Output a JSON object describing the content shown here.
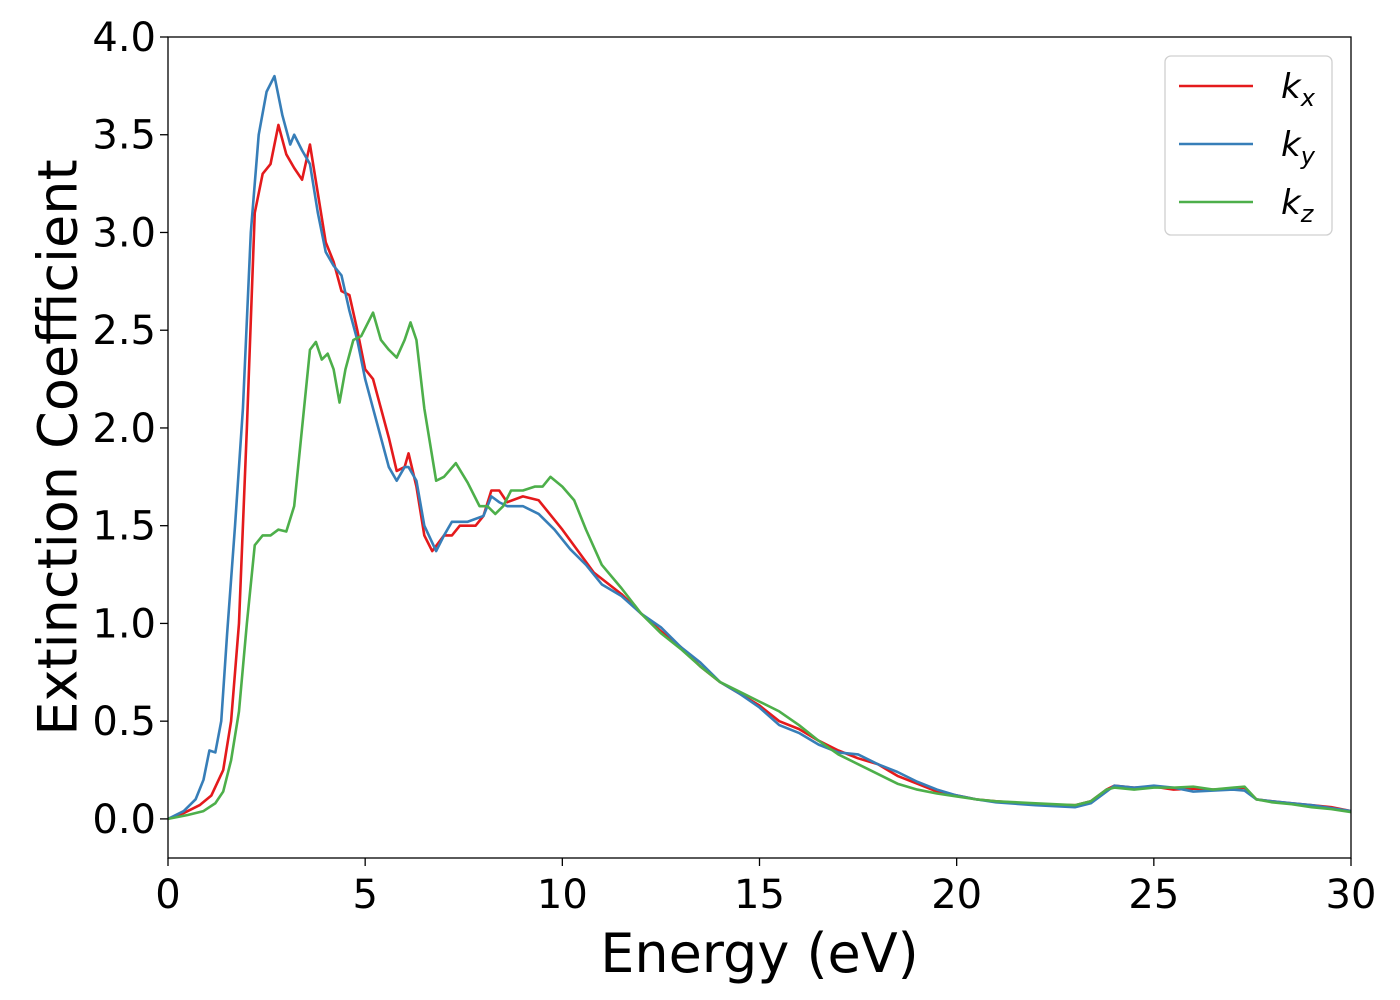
{
  "chart_data": {
    "type": "line",
    "title": "",
    "xlabel": "Energy (eV)",
    "ylabel": "Extinction Coefficient",
    "xlim": [
      0,
      30
    ],
    "ylim": [
      -0.2,
      4.0
    ],
    "xticks": [
      0,
      5,
      10,
      15,
      20,
      25,
      30
    ],
    "yticks": [
      0.0,
      0.5,
      1.0,
      1.5,
      2.0,
      2.5,
      3.0,
      3.5,
      4.0
    ],
    "xtick_labels": [
      "0",
      "5",
      "10",
      "15",
      "20",
      "25",
      "30"
    ],
    "ytick_labels": [
      "0.0",
      "0.5",
      "1.0",
      "1.5",
      "2.0",
      "2.5",
      "3.0",
      "3.5",
      "4.0"
    ],
    "grid": false,
    "legend_position": "top-right",
    "series": [
      {
        "name": "k_x",
        "legend_main": "k",
        "legend_sub": "x",
        "color": "#e41a1c",
        "points": [
          [
            0,
            0
          ],
          [
            0.4,
            0.03
          ],
          [
            0.8,
            0.07
          ],
          [
            1.1,
            0.12
          ],
          [
            1.4,
            0.25
          ],
          [
            1.6,
            0.5
          ],
          [
            1.8,
            1.0
          ],
          [
            2.0,
            2.0
          ],
          [
            2.2,
            3.1
          ],
          [
            2.4,
            3.3
          ],
          [
            2.6,
            3.35
          ],
          [
            2.8,
            3.55
          ],
          [
            3.0,
            3.4
          ],
          [
            3.2,
            3.33
          ],
          [
            3.4,
            3.27
          ],
          [
            3.6,
            3.45
          ],
          [
            3.8,
            3.2
          ],
          [
            4.0,
            2.95
          ],
          [
            4.2,
            2.85
          ],
          [
            4.4,
            2.7
          ],
          [
            4.6,
            2.68
          ],
          [
            4.8,
            2.5
          ],
          [
            5.0,
            2.3
          ],
          [
            5.2,
            2.25
          ],
          [
            5.4,
            2.1
          ],
          [
            5.6,
            1.95
          ],
          [
            5.8,
            1.78
          ],
          [
            6.0,
            1.8
          ],
          [
            6.1,
            1.87
          ],
          [
            6.3,
            1.7
          ],
          [
            6.5,
            1.45
          ],
          [
            6.7,
            1.37
          ],
          [
            7.0,
            1.45
          ],
          [
            7.2,
            1.45
          ],
          [
            7.4,
            1.5
          ],
          [
            7.6,
            1.5
          ],
          [
            7.8,
            1.5
          ],
          [
            8.0,
            1.55
          ],
          [
            8.2,
            1.68
          ],
          [
            8.4,
            1.68
          ],
          [
            8.6,
            1.62
          ],
          [
            9.0,
            1.65
          ],
          [
            9.4,
            1.63
          ],
          [
            9.6,
            1.58
          ],
          [
            10.0,
            1.48
          ],
          [
            10.4,
            1.37
          ],
          [
            10.8,
            1.26
          ],
          [
            11.5,
            1.15
          ],
          [
            12.0,
            1.05
          ],
          [
            12.5,
            0.96
          ],
          [
            13.0,
            0.88
          ],
          [
            13.5,
            0.78
          ],
          [
            14.0,
            0.7
          ],
          [
            14.5,
            0.64
          ],
          [
            15.0,
            0.58
          ],
          [
            15.5,
            0.5
          ],
          [
            16.0,
            0.46
          ],
          [
            16.5,
            0.4
          ],
          [
            17.0,
            0.35
          ],
          [
            17.5,
            0.31
          ],
          [
            18.0,
            0.28
          ],
          [
            18.5,
            0.22
          ],
          [
            19.0,
            0.18
          ],
          [
            19.5,
            0.14
          ],
          [
            20.0,
            0.12
          ],
          [
            20.5,
            0.1
          ],
          [
            21.0,
            0.09
          ],
          [
            22.0,
            0.075
          ],
          [
            23.0,
            0.07
          ],
          [
            23.4,
            0.09
          ],
          [
            23.8,
            0.15
          ],
          [
            24.0,
            0.17
          ],
          [
            24.5,
            0.16
          ],
          [
            25.0,
            0.165
          ],
          [
            25.5,
            0.15
          ],
          [
            26.0,
            0.155
          ],
          [
            26.5,
            0.15
          ],
          [
            27.0,
            0.155
          ],
          [
            27.3,
            0.16
          ],
          [
            27.6,
            0.1
          ],
          [
            28.0,
            0.09
          ],
          [
            28.5,
            0.08
          ],
          [
            29.0,
            0.07
          ],
          [
            29.5,
            0.06
          ],
          [
            30.0,
            0.04
          ]
        ]
      },
      {
        "name": "k_y",
        "legend_main": "k",
        "legend_sub": "y",
        "color": "#377eb8",
        "points": [
          [
            0,
            0
          ],
          [
            0.4,
            0.04
          ],
          [
            0.7,
            0.1
          ],
          [
            0.9,
            0.2
          ],
          [
            1.05,
            0.35
          ],
          [
            1.2,
            0.34
          ],
          [
            1.35,
            0.5
          ],
          [
            1.5,
            0.95
          ],
          [
            1.7,
            1.5
          ],
          [
            1.9,
            2.1
          ],
          [
            2.1,
            3.0
          ],
          [
            2.3,
            3.5
          ],
          [
            2.5,
            3.72
          ],
          [
            2.7,
            3.8
          ],
          [
            2.9,
            3.6
          ],
          [
            3.1,
            3.45
          ],
          [
            3.2,
            3.5
          ],
          [
            3.4,
            3.42
          ],
          [
            3.6,
            3.35
          ],
          [
            3.8,
            3.1
          ],
          [
            4.0,
            2.9
          ],
          [
            4.2,
            2.83
          ],
          [
            4.4,
            2.78
          ],
          [
            4.6,
            2.6
          ],
          [
            4.8,
            2.45
          ],
          [
            5.0,
            2.25
          ],
          [
            5.2,
            2.1
          ],
          [
            5.4,
            1.95
          ],
          [
            5.6,
            1.8
          ],
          [
            5.8,
            1.73
          ],
          [
            6.0,
            1.8
          ],
          [
            6.1,
            1.8
          ],
          [
            6.3,
            1.73
          ],
          [
            6.5,
            1.5
          ],
          [
            6.8,
            1.37
          ],
          [
            7.0,
            1.45
          ],
          [
            7.2,
            1.52
          ],
          [
            7.6,
            1.52
          ],
          [
            8.0,
            1.55
          ],
          [
            8.2,
            1.65
          ],
          [
            8.4,
            1.62
          ],
          [
            8.6,
            1.6
          ],
          [
            9.0,
            1.6
          ],
          [
            9.4,
            1.56
          ],
          [
            9.8,
            1.48
          ],
          [
            10.2,
            1.38
          ],
          [
            10.6,
            1.3
          ],
          [
            11.0,
            1.2
          ],
          [
            11.5,
            1.14
          ],
          [
            12.0,
            1.05
          ],
          [
            12.5,
            0.98
          ],
          [
            13.0,
            0.88
          ],
          [
            13.5,
            0.8
          ],
          [
            14.0,
            0.7
          ],
          [
            14.5,
            0.64
          ],
          [
            15.0,
            0.57
          ],
          [
            15.5,
            0.48
          ],
          [
            16.0,
            0.44
          ],
          [
            16.5,
            0.38
          ],
          [
            17.0,
            0.34
          ],
          [
            17.5,
            0.33
          ],
          [
            18.0,
            0.28
          ],
          [
            18.5,
            0.24
          ],
          [
            19.0,
            0.19
          ],
          [
            19.5,
            0.15
          ],
          [
            20.0,
            0.12
          ],
          [
            20.5,
            0.1
          ],
          [
            21.0,
            0.085
          ],
          [
            22.0,
            0.07
          ],
          [
            23.0,
            0.06
          ],
          [
            23.4,
            0.08
          ],
          [
            23.8,
            0.14
          ],
          [
            24.0,
            0.17
          ],
          [
            24.5,
            0.16
          ],
          [
            25.0,
            0.17
          ],
          [
            25.5,
            0.16
          ],
          [
            26.0,
            0.14
          ],
          [
            26.5,
            0.145
          ],
          [
            27.0,
            0.15
          ],
          [
            27.3,
            0.145
          ],
          [
            27.6,
            0.1
          ],
          [
            28.0,
            0.09
          ],
          [
            28.5,
            0.08
          ],
          [
            29.0,
            0.07
          ],
          [
            29.5,
            0.055
          ],
          [
            30.0,
            0.04
          ]
        ]
      },
      {
        "name": "k_z",
        "legend_main": "k",
        "legend_sub": "z",
        "color": "#4daf4a",
        "points": [
          [
            0,
            0
          ],
          [
            0.5,
            0.02
          ],
          [
            0.9,
            0.04
          ],
          [
            1.2,
            0.08
          ],
          [
            1.4,
            0.14
          ],
          [
            1.6,
            0.3
          ],
          [
            1.8,
            0.55
          ],
          [
            2.0,
            1.0
          ],
          [
            2.2,
            1.4
          ],
          [
            2.4,
            1.45
          ],
          [
            2.6,
            1.45
          ],
          [
            2.8,
            1.48
          ],
          [
            3.0,
            1.47
          ],
          [
            3.2,
            1.6
          ],
          [
            3.4,
            2.0
          ],
          [
            3.6,
            2.4
          ],
          [
            3.75,
            2.44
          ],
          [
            3.9,
            2.35
          ],
          [
            4.05,
            2.38
          ],
          [
            4.2,
            2.3
          ],
          [
            4.35,
            2.13
          ],
          [
            4.5,
            2.3
          ],
          [
            4.7,
            2.45
          ],
          [
            4.9,
            2.47
          ],
          [
            5.1,
            2.55
          ],
          [
            5.2,
            2.59
          ],
          [
            5.4,
            2.45
          ],
          [
            5.6,
            2.4
          ],
          [
            5.8,
            2.36
          ],
          [
            6.0,
            2.45
          ],
          [
            6.15,
            2.54
          ],
          [
            6.3,
            2.45
          ],
          [
            6.5,
            2.1
          ],
          [
            6.8,
            1.73
          ],
          [
            7.0,
            1.75
          ],
          [
            7.3,
            1.82
          ],
          [
            7.6,
            1.72
          ],
          [
            7.9,
            1.6
          ],
          [
            8.1,
            1.6
          ],
          [
            8.3,
            1.56
          ],
          [
            8.5,
            1.6
          ],
          [
            8.7,
            1.68
          ],
          [
            9.0,
            1.68
          ],
          [
            9.3,
            1.7
          ],
          [
            9.5,
            1.7
          ],
          [
            9.7,
            1.75
          ],
          [
            10.0,
            1.7
          ],
          [
            10.3,
            1.63
          ],
          [
            10.6,
            1.48
          ],
          [
            11.0,
            1.3
          ],
          [
            11.5,
            1.18
          ],
          [
            12.0,
            1.05
          ],
          [
            12.5,
            0.95
          ],
          [
            13.0,
            0.87
          ],
          [
            13.5,
            0.78
          ],
          [
            14.0,
            0.7
          ],
          [
            14.5,
            0.65
          ],
          [
            15.0,
            0.6
          ],
          [
            15.5,
            0.55
          ],
          [
            16.0,
            0.48
          ],
          [
            16.5,
            0.4
          ],
          [
            17.0,
            0.33
          ],
          [
            17.5,
            0.28
          ],
          [
            18.0,
            0.23
          ],
          [
            18.5,
            0.18
          ],
          [
            19.0,
            0.15
          ],
          [
            19.5,
            0.13
          ],
          [
            20.0,
            0.115
          ],
          [
            20.5,
            0.1
          ],
          [
            21.0,
            0.09
          ],
          [
            22.0,
            0.08
          ],
          [
            23.0,
            0.07
          ],
          [
            23.4,
            0.09
          ],
          [
            23.8,
            0.15
          ],
          [
            24.0,
            0.16
          ],
          [
            24.5,
            0.15
          ],
          [
            25.0,
            0.16
          ],
          [
            25.5,
            0.16
          ],
          [
            26.0,
            0.165
          ],
          [
            26.5,
            0.15
          ],
          [
            27.0,
            0.16
          ],
          [
            27.3,
            0.165
          ],
          [
            27.6,
            0.1
          ],
          [
            28.0,
            0.085
          ],
          [
            28.5,
            0.075
          ],
          [
            29.0,
            0.06
          ],
          [
            29.5,
            0.05
          ],
          [
            30.0,
            0.035
          ]
        ]
      }
    ]
  }
}
